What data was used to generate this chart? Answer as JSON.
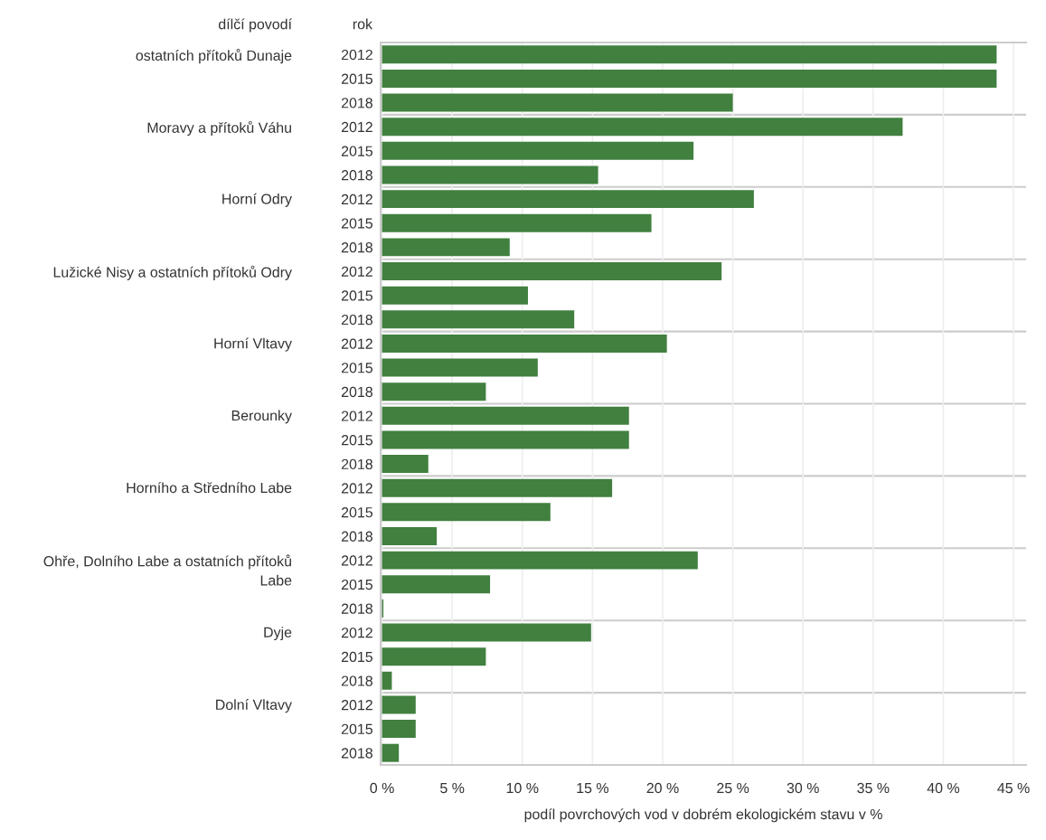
{
  "chart_data": {
    "type": "bar",
    "orientation": "horizontal",
    "xlabel": "podíl povrchových vod v dobrém ekologickém stavu v %",
    "annotations": [
      "dílčí povodí",
      "rok",
      "ostatních přítoků Dunaje",
      "Moravy a přítoků Váhu",
      "Horní Odry",
      "Lužické Nisy a ostatních přítoků Odry",
      "Horní Vltavy",
      "Berounky",
      "Horního a Středního Labe",
      "Ohře, Dolního Labe a ostatních přítoků Labe",
      "Dyje",
      "Dolní Vltavy"
    ],
    "categories": [
      "2012",
      "2015",
      "2018",
      "2012",
      "2015",
      "2018",
      "2012",
      "2015",
      "2018",
      "2012",
      "2015",
      "2018",
      "2012",
      "2015",
      "2018",
      "2012",
      "2015",
      "2018",
      "2012",
      "2015",
      "2018",
      "2012",
      "2015",
      "2018",
      "2012",
      "2015",
      "2018",
      "2012",
      "2015",
      "2018"
    ],
    "values": [
      43.8,
      43.8,
      25.0,
      37.1,
      22.2,
      15.4,
      26.5,
      19.2,
      9.1,
      24.2,
      10.4,
      13.7,
      20.3,
      11.1,
      7.4,
      17.6,
      17.6,
      3.3,
      16.4,
      12.0,
      3.9,
      22.5,
      7.7,
      0.1,
      14.9,
      7.4,
      0.7,
      2.4,
      2.4,
      1.2
    ],
    "color": "#41803f",
    "xlim": [
      -0.1,
      45.9
    ],
    "xticks": [
      {
        "value": 0,
        "label": "0 %"
      },
      {
        "value": 5,
        "label": "5 %"
      },
      {
        "value": 10,
        "label": "10 %"
      },
      {
        "value": 15,
        "label": "15 %"
      },
      {
        "value": 20,
        "label": "20 %"
      },
      {
        "value": 25,
        "label": "25 %"
      },
      {
        "value": 30,
        "label": "30 %"
      },
      {
        "value": 35,
        "label": "35 %"
      },
      {
        "value": 40,
        "label": "40 %"
      },
      {
        "value": 45,
        "label": "45 %"
      }
    ],
    "grid": "x"
  }
}
